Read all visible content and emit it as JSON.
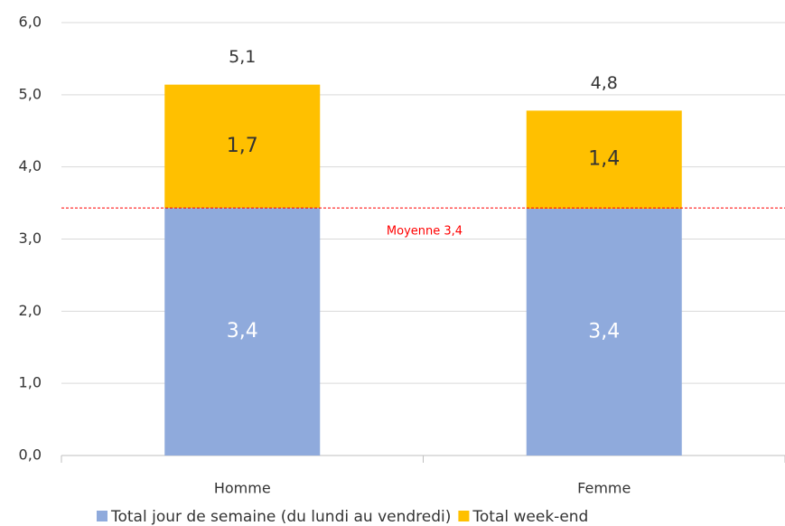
{
  "chart_data": {
    "type": "stacked_bar",
    "categories": [
      "Homme",
      "Femme"
    ],
    "series": [
      {
        "name": "Total jour de semaine (du lundi au vendredi)",
        "color": "#8faadc",
        "values": [
          3.43,
          3.42
        ],
        "value_labels": [
          "3,4",
          "3,4"
        ]
      },
      {
        "name": "Total week-end",
        "color": "#ffc000",
        "values": [
          1.71,
          1.36
        ],
        "value_labels": [
          "1,7",
          "1,4"
        ]
      }
    ],
    "total_labels": [
      "5,1",
      "4,8"
    ],
    "reference_line": {
      "value": 3.43,
      "label": "Moyenne 3,4",
      "color": "#ff0000"
    },
    "ylim": [
      0,
      6
    ],
    "yticks": [
      {
        "value": 0,
        "label": "0,0"
      },
      {
        "value": 1,
        "label": "1,0"
      },
      {
        "value": 2,
        "label": "2,0"
      },
      {
        "value": 3,
        "label": "3,0"
      },
      {
        "value": 4,
        "label": "4,0"
      },
      {
        "value": 5,
        "label": "5,0"
      },
      {
        "value": 6,
        "label": "6,0"
      }
    ],
    "grid": true,
    "legend": "bottom"
  }
}
